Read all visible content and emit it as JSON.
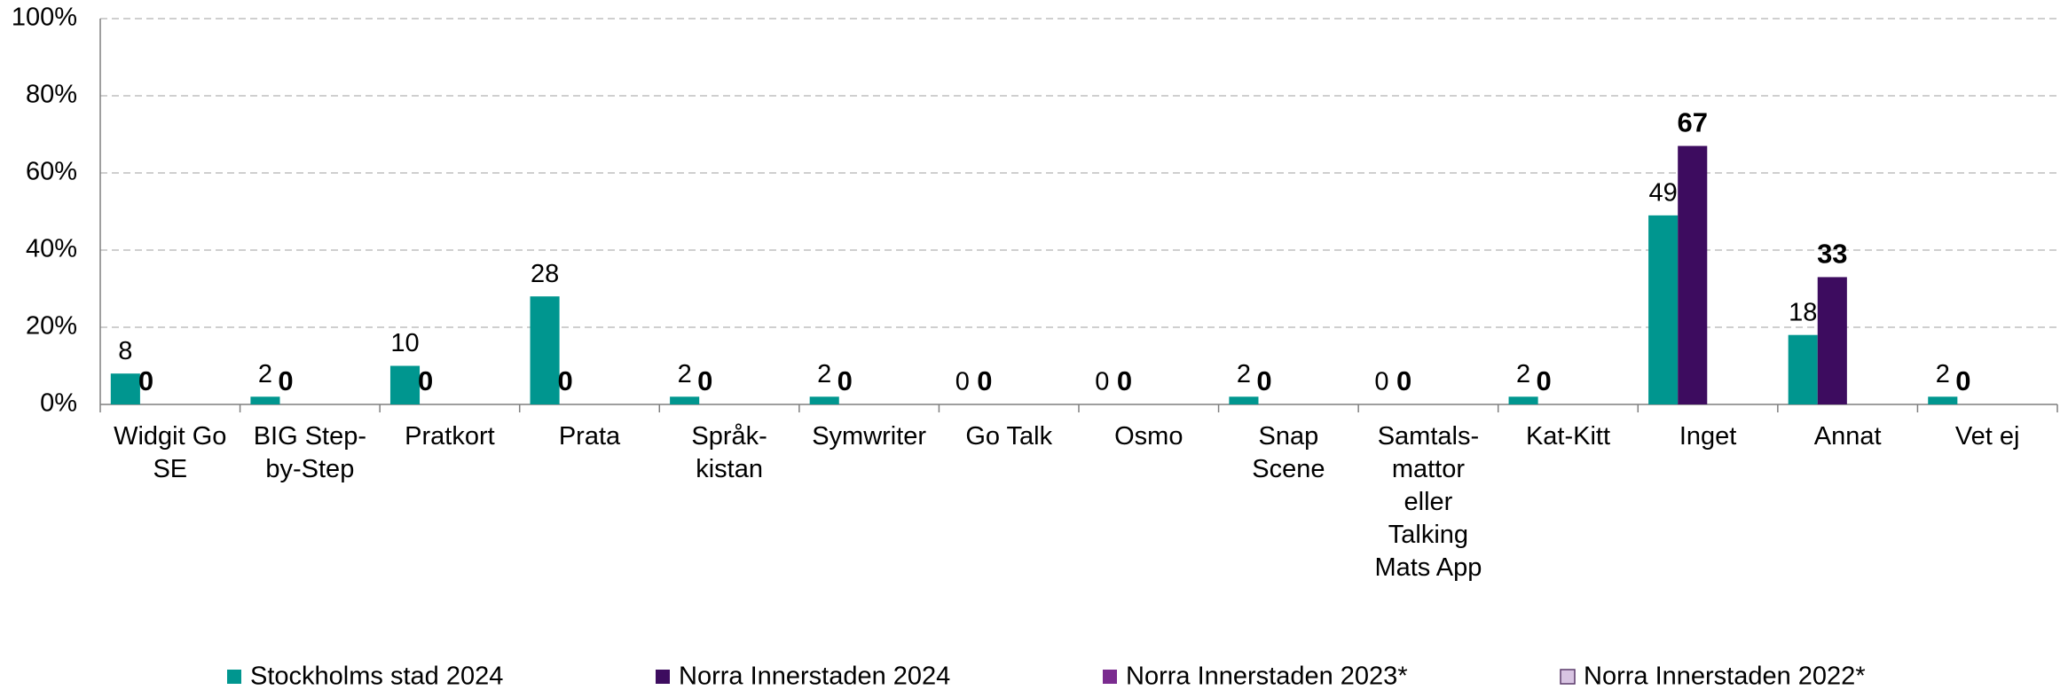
{
  "chart_data": {
    "type": "bar",
    "categories": [
      "Widgit Go\nSE",
      "BIG Step-\nby-Step",
      "Pratkort",
      "Prata",
      "Språk-\nkistan",
      "Symwriter",
      "Go Talk",
      "Osmo",
      "Snap\nScene",
      "Samtals-\nmattor\neller\nTalking\nMats App",
      "Kat-Kitt",
      "Inget",
      "Annat",
      "Vet ej"
    ],
    "series": [
      {
        "name": "Stockholms stad 2024",
        "color": "#00968f",
        "values": [
          8,
          2,
          10,
          28,
          2,
          2,
          0,
          0,
          2,
          0,
          2,
          49,
          18,
          2
        ]
      },
      {
        "name": "Norra Innerstaden 2024",
        "color": "#3d0c5f",
        "values": [
          0,
          0,
          0,
          0,
          0,
          0,
          0,
          0,
          0,
          0,
          0,
          67,
          33,
          0
        ]
      },
      {
        "name": "Norra Innerstaden 2023*",
        "color": "#7a2b8f",
        "values": [
          null,
          null,
          null,
          null,
          null,
          null,
          null,
          null,
          null,
          null,
          null,
          null,
          null,
          null
        ]
      },
      {
        "name": "Norra Innerstaden 2022*",
        "color": "#d8c4e2",
        "values": [
          null,
          null,
          null,
          null,
          null,
          null,
          null,
          null,
          null,
          null,
          null,
          null,
          null,
          null
        ]
      }
    ],
    "ylim": [
      0,
      100
    ],
    "yticks": [
      {
        "value": 0,
        "label": "0%"
      },
      {
        "value": 20,
        "label": "20%"
      },
      {
        "value": 40,
        "label": "40%"
      },
      {
        "value": 60,
        "label": "60%"
      },
      {
        "value": 80,
        "label": "80%"
      },
      {
        "value": 100,
        "label": "100%"
      }
    ],
    "grid": true,
    "legend": "bottom"
  }
}
